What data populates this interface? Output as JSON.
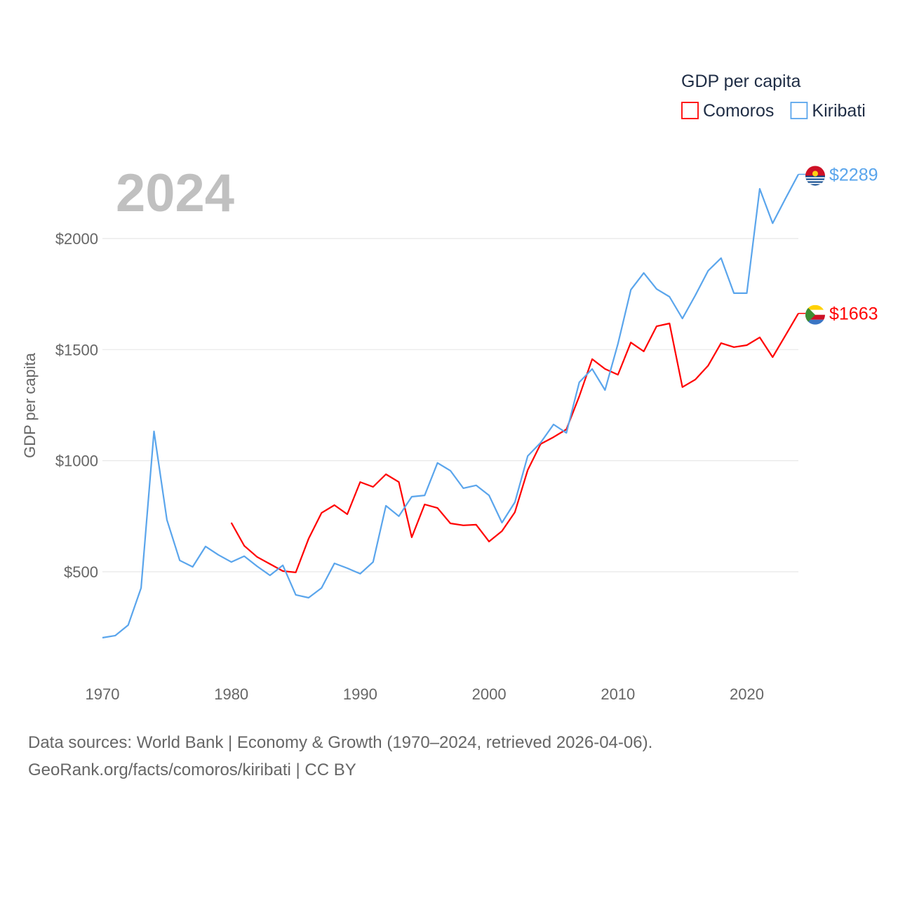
{
  "chart_data": {
    "type": "line",
    "year_label": "2024",
    "ylabel": "GDP per capita",
    "legend_title": "GDP per capita",
    "legend_placement": "top-right",
    "xlim": [
      1970,
      2024
    ],
    "ylim": [
      130,
      2400
    ],
    "x_ticks": [
      1970,
      1980,
      1990,
      2000,
      2010,
      2020
    ],
    "x_tick_labels": [
      "1970",
      "1980",
      "1990",
      "2000",
      "2010",
      "2020"
    ],
    "y_ticks": [
      500,
      1000,
      1500,
      2000
    ],
    "y_tick_labels": [
      "$500",
      "$1000",
      "$1500",
      "$2000"
    ],
    "grid": true,
    "series": [
      {
        "name": "Comoros",
        "color": "#ff0000",
        "end_label": "$1663",
        "start_year": 1980,
        "values": [
          721,
          617,
          567,
          535,
          503,
          497,
          649,
          765,
          800,
          759,
          904,
          882,
          939,
          904,
          655,
          803,
          787,
          718,
          709,
          712,
          636,
          683,
          768,
          958,
          1075,
          1106,
          1141,
          1290,
          1457,
          1413,
          1387,
          1532,
          1492,
          1605,
          1618,
          1331,
          1365,
          1428,
          1529,
          1511,
          1520,
          1555,
          1466,
          1564,
          1663
        ]
      },
      {
        "name": "Kiribati",
        "color": "#5aa5ec",
        "end_label": "$2289",
        "start_year": 1970,
        "values": [
          203,
          213,
          260,
          427,
          1132,
          734,
          551,
          522,
          614,
          576,
          544,
          570,
          525,
          484,
          529,
          396,
          383,
          427,
          538,
          516,
          491,
          544,
          797,
          750,
          838,
          844,
          990,
          955,
          876,
          889,
          844,
          721,
          813,
          1021,
          1081,
          1163,
          1125,
          1353,
          1413,
          1318,
          1526,
          1769,
          1845,
          1773,
          1738,
          1640,
          1744,
          1855,
          1912,
          1754,
          1754,
          2224,
          2069,
          2180,
          2289
        ]
      }
    ]
  },
  "footer": {
    "line1": "Data sources: World Bank | Economy & Growth (1970–2024, retrieved 2026-04-06).",
    "line2": "GeoRank.org/facts/comoros/kiribati | CC BY"
  }
}
